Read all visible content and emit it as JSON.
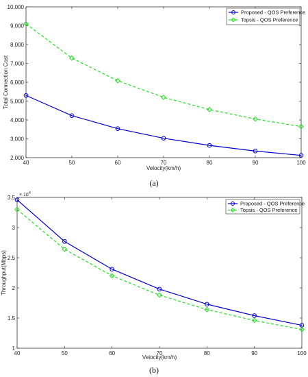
{
  "chart_data": [
    {
      "type": "line",
      "panel_label": "(a)",
      "title": "",
      "xlabel": "Velocity(km/h)",
      "ylabel": "Total Connection Cost",
      "x": [
        40,
        50,
        60,
        70,
        80,
        90,
        100
      ],
      "xlim": [
        40,
        100
      ],
      "ylim": [
        2000,
        10000
      ],
      "x_ticks": [
        "40",
        "50",
        "60",
        "70",
        "80",
        "90",
        "100"
      ],
      "y_ticks": [
        "2,000",
        "3,000",
        "4,000",
        "5,000",
        "6,000",
        "7,000",
        "8,000",
        "9,000",
        "10,000"
      ],
      "y_tick_values": [
        2000,
        3000,
        4000,
        5000,
        6000,
        7000,
        8000,
        9000,
        10000
      ],
      "legend_position": "top-right",
      "grid": false,
      "series": [
        {
          "name": "Proposed - QOS Preference",
          "color": "#0000cc",
          "marker": "circle",
          "dash": "solid",
          "values": [
            5300,
            4230,
            3540,
            3030,
            2650,
            2350,
            2120
          ]
        },
        {
          "name": "Topsis - QOS Preference",
          "color": "#22dd22",
          "marker": "diamond",
          "dash": "dashed",
          "values": [
            9100,
            7280,
            6080,
            5200,
            4550,
            4050,
            3650
          ]
        }
      ]
    },
    {
      "type": "line",
      "panel_label": "(b)",
      "title": "",
      "xlabel": "Velocity(km/h)",
      "ylabel": "Throughput(Mbps)",
      "exponent_label": "× 10",
      "exponent_power": "4",
      "x": [
        40,
        50,
        60,
        70,
        80,
        90,
        100
      ],
      "xlim": [
        40,
        100
      ],
      "ylim": [
        1,
        3.5
      ],
      "x_ticks": [
        "40",
        "50",
        "60",
        "70",
        "80",
        "90",
        "100"
      ],
      "y_ticks": [
        "1",
        "1.5",
        "2",
        "2.5",
        "3",
        "3.5"
      ],
      "y_tick_values": [
        1,
        1.5,
        2,
        2.5,
        3,
        3.5
      ],
      "legend_position": "top-right",
      "grid": false,
      "series": [
        {
          "name": "Proposed - QOS Preference",
          "color": "#0000cc",
          "marker": "circle",
          "dash": "solid",
          "values": [
            3.46,
            2.77,
            2.31,
            1.98,
            1.73,
            1.54,
            1.38
          ]
        },
        {
          "name": "Topsis - QOS Preference",
          "color": "#22dd22",
          "marker": "diamond",
          "dash": "dashed",
          "values": [
            3.3,
            2.64,
            2.2,
            1.88,
            1.64,
            1.46,
            1.31
          ]
        }
      ]
    }
  ]
}
